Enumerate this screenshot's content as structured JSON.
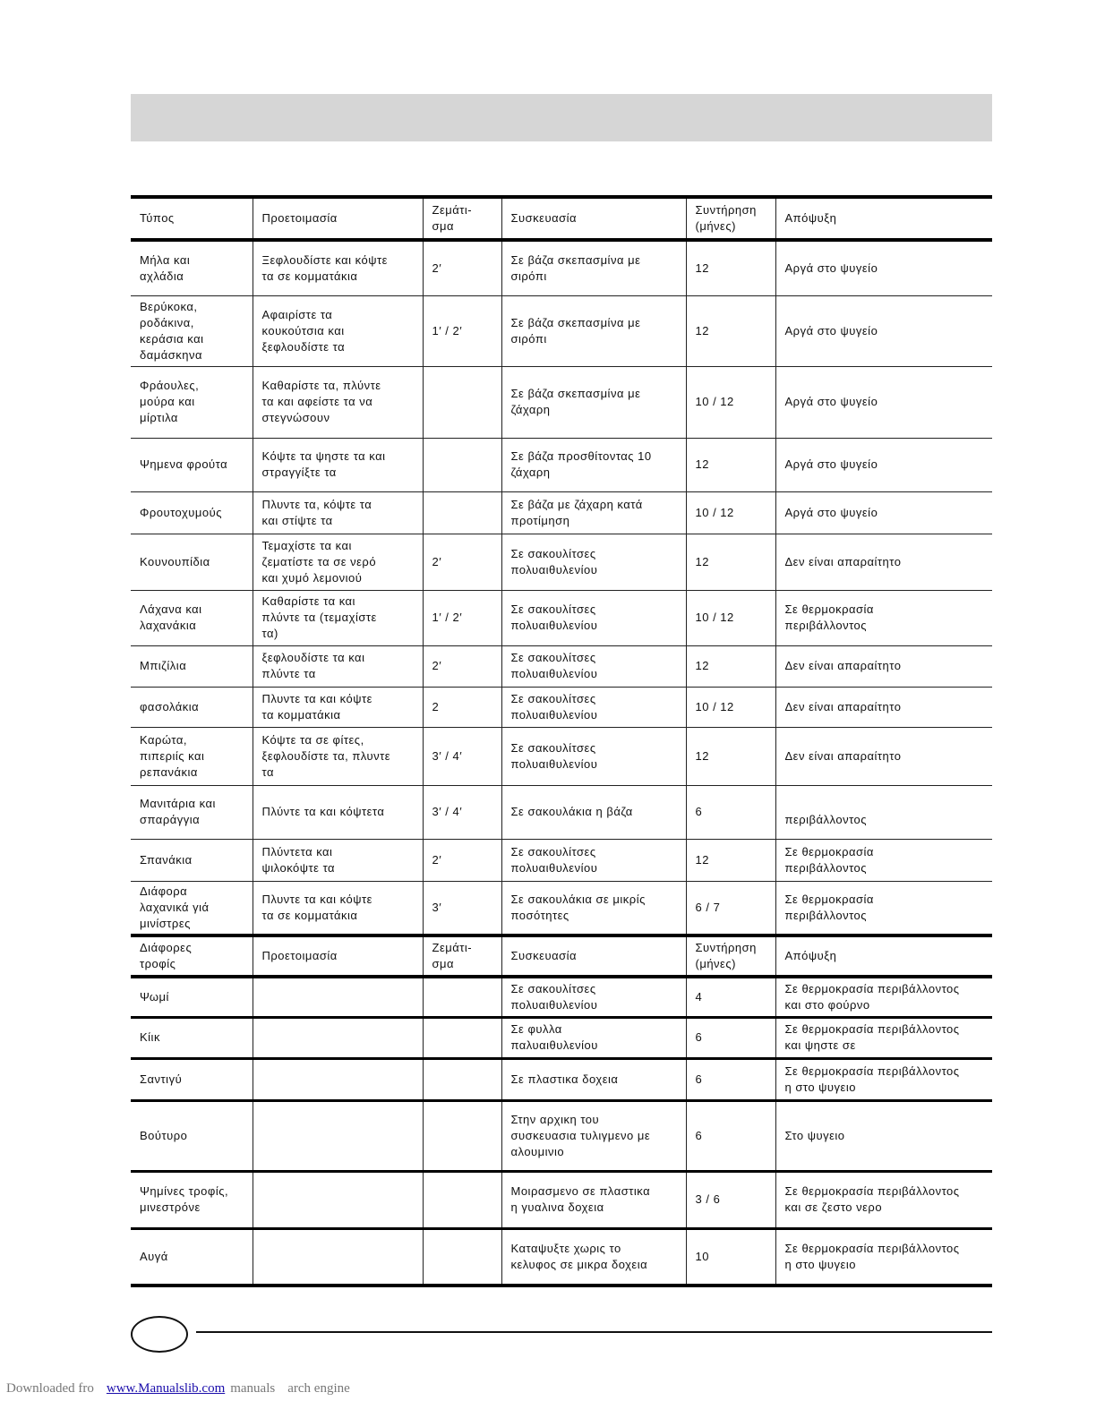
{
  "header_row": [
    "Τύπος",
    "Προετοιμασία",
    "Ζεμάτι-\nσμα",
    "Συσκευασία",
    "Συντήρηση\n(μήνες)",
    "Απόψυξη"
  ],
  "rows": [
    [
      "Μήλα και\nαχλάδια",
      "Ξεφλουδίστε και κόψτε\nτα σε κομματάκια",
      "2′",
      "Σε βάζα σκεπασμίνα με\nσιρόπι",
      "12",
      "Αργά στο ψυγείο"
    ],
    [
      "Βερύκοκα,\nροδάκινα,\nκεράσια και\nδαμάσκηνα",
      "Αφαιρίστε τα\nκουκούτσια και\nξεφλουδίστε τα",
      "1′ / 2′",
      "Σε βάζα σκεπασμίνα με\nσιρόπι",
      "12",
      "Αργά στο ψυγείο"
    ],
    [
      "Φράουλες,\nμούρα και\nμίρτιλα",
      "Καθαρίστε τα, πλύντε\nτα και αφείστε τα να\nστεγνώσουν",
      "",
      "Σε βάζα σκεπασμίνα με\nζάχαρη",
      "10 / 12",
      "Αργά στο ψυγείο"
    ],
    [
      "Ψημενα φρούτα",
      "Κόψτε τα ψηστε τα και\nστραγγίξτε τα",
      "",
      "Σε βάζα προσθίτοντας 10\nζάχαρη",
      "12",
      "Αργά στο ψυγείο"
    ],
    [
      "Φρουτοχυμούς",
      "Πλυντε τα, κόψτε τα\nκαι στίψτε τα",
      "",
      "Σε βάζα με ζάχαρη κατά\nπροτίμηση",
      "10 / 12",
      "Αργά στο ψυγείο"
    ],
    [
      "Κουνουπίδια",
      "Τεμαχίστε τα και\nζεματίστε τα σε νερό\nκαι χυμό λεμονιού",
      "2′",
      "Σε σακουλίτσες\nπολυαιθυλενίου",
      "12",
      "Δεν είναι απαραίτητο"
    ],
    [
      "Λάχανα και\nλαχανάκια",
      "Καθαρίστε τα και\nπλύντε τα (τεμαχίστε\nτα)",
      "1′ / 2′",
      "Σε σακουλίτσες\nπολυαιθυλενίου",
      "10 / 12",
      " Σε θερμοκρασία\nπεριβάλλοντος"
    ],
    [
      "Μπιζίλια",
      " ξεφλουδίστε τα και\nπλύντε τα",
      "2′",
      "Σε σακουλίτσες\nπολυαιθυλενίου",
      "12",
      "Δεν είναι απαραίτητο"
    ],
    [
      "φασολάκια",
      "Πλυντε τα και κόψτε\nτα κομματάκια",
      "2",
      "Σε σακουλίτσες\nπολυαιθυλενίου",
      "10 / 12",
      "Δεν είναι απαραίτητο"
    ],
    [
      "Καρώτα,\nπιπεριίς και\nρεπανάκια",
      "Κόψτε τα σε φίτες,\nξεφλουδίστε τα, πλυντε\nτα",
      "3′ / 4′",
      "Σε σακουλίτσες\nπολυαιθυλενίου",
      "12",
      "Δεν είναι απαραίτητο"
    ],
    [
      "Μανιτάρια και\nσπαράγγια",
      "Πλύντε τα και κόψτετα",
      "3′ / 4′",
      "Σε σακουλάκια η βάζα",
      "6",
      "\nπεριβάλλοντος"
    ],
    [
      "Σπανάκια",
      "Πλύντετα και\nψιλοκόψτε τα",
      "2′",
      "Σε σακουλίτσες\nπολυαιθυλενίου",
      "12",
      " Σε θερμοκρασία\nπεριβάλλοντος"
    ],
    [
      "Διάφορα\nλαχανικά γιά\nμινίστρες",
      " Πλυντε τα και κόψτε\nτα σε κομματάκια",
      "3′",
      "Σε σακουλάκια σε μικρίς\nποσότητες",
      "6 / 7",
      " Σε θερμοκρασία\nπεριβάλλοντος"
    ]
  ],
  "header_row_2": [
    "Διάφορες\nτροφίς",
    "Προετοιμασία",
    "Ζεμάτι-\nσμα",
    "Συσκευασία",
    "Συντήρηση\n(μήνες)",
    "Απόψυξη"
  ],
  "rows_2": [
    [
      "Ψωμί",
      "",
      "",
      "Σε σακουλίτσες\nπολυαιθυλενίου",
      "4",
      "Σε θερμοκρασία περιβάλλοντος\nκαι στο φούρνο"
    ],
    [
      "Κίικ",
      "",
      "",
      "Σε φυλλα\nπαλυαιθυλενίου",
      "6",
      "Σε θερμοκρασία περιβάλλοντος\nκαι ψηστε σε"
    ],
    [
      "Σαντιγύ",
      "",
      "",
      "Σε πλαστικα δοχεια",
      "6",
      "Σε θερμοκρασία περιβάλλοντος\nη στο ψυγειο"
    ],
    [
      "Βούτυρο",
      "",
      "",
      "Στην αρχικη του\nσυσκευασια τυλιγμενο με\nαλουμινιο",
      "6",
      "Στο ψυγειο"
    ],
    [
      "Ψημίνες τροφίς,\nμινεστρόνε",
      "",
      "",
      "Μοιρασμενο σε πλαστικα\nη γυαλινα  δοχεια",
      "3 / 6",
      "Σε θερμοκρασία περιβάλλοντος\nκαι σε ζεστο νερο"
    ],
    [
      "Αυγά",
      "",
      "",
      "Καταψυξτε χωρις το\nκελυφος σε μικρα δοχεια",
      "10",
      "Σε θερμοκρασία περιβάλλοντος\nη στο ψυγειο"
    ]
  ],
  "footer": {
    "download_prefix": "Downloaded fro",
    "link": "www.Manualslib.com",
    "suffix1": "manuals",
    "suffix2": "arch engine"
  }
}
